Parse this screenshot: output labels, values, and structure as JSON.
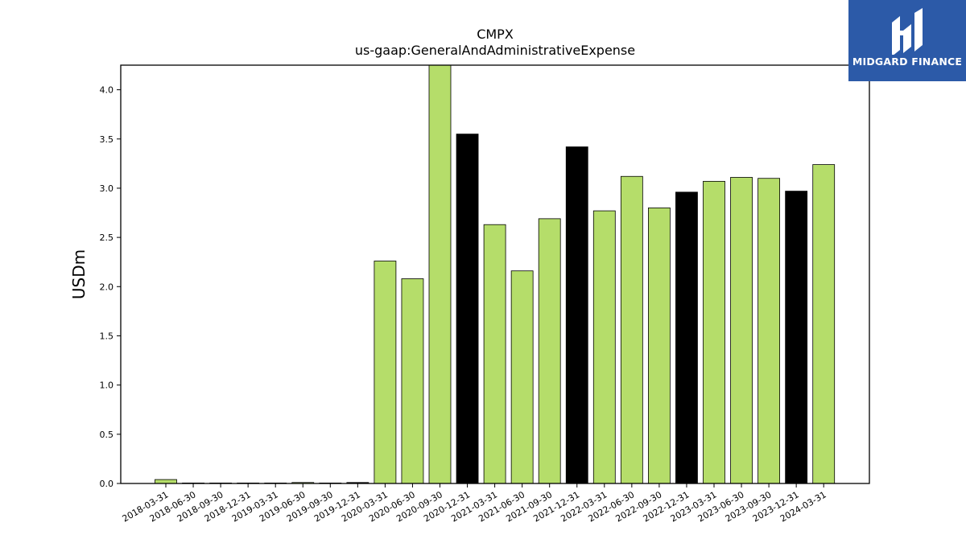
{
  "chart_data": {
    "type": "bar",
    "title": "CMPX",
    "subtitle": "us-gaap:GeneralAndAdministrativeExpense",
    "ylabel": "USDm",
    "xlabel": "",
    "ylim": [
      0,
      4.25
    ],
    "yticks": [
      "0.0",
      "0.5",
      "1.0",
      "1.5",
      "2.0",
      "2.5",
      "3.0",
      "3.5",
      "4.0"
    ],
    "categories": [
      "2018-03-31",
      "2018-06-30",
      "2018-09-30",
      "2018-12-31",
      "2019-03-31",
      "2019-06-30",
      "2019-09-30",
      "2019-12-31",
      "2020-03-31",
      "2020-06-30",
      "2020-09-30",
      "2020-12-31",
      "2021-03-31",
      "2021-06-30",
      "2021-09-30",
      "2021-12-31",
      "2022-03-31",
      "2022-06-30",
      "2022-09-30",
      "2022-12-31",
      "2023-03-31",
      "2023-06-30",
      "2023-09-30",
      "2023-12-31",
      "2024-03-31"
    ],
    "values": [
      0.04,
      0.005,
      0.005,
      0.005,
      0.005,
      0.01,
      0.005,
      0.01,
      2.26,
      2.08,
      4.3,
      3.55,
      2.63,
      2.16,
      2.69,
      3.42,
      2.77,
      3.12,
      2.8,
      2.96,
      3.07,
      3.11,
      3.1,
      2.97,
      3.24
    ],
    "bar_colors": [
      "#b5dd6a",
      "#b5dd6a",
      "#b5dd6a",
      "#000000",
      "#b5dd6a",
      "#b5dd6a",
      "#b5dd6a",
      "#000000",
      "#b5dd6a",
      "#b5dd6a",
      "#b5dd6a",
      "#000000",
      "#b5dd6a",
      "#b5dd6a",
      "#b5dd6a",
      "#000000",
      "#b5dd6a",
      "#b5dd6a",
      "#b5dd6a",
      "#000000",
      "#b5dd6a",
      "#b5dd6a",
      "#b5dd6a",
      "#000000",
      "#b5dd6a"
    ],
    "grid": false,
    "legend": "none"
  },
  "logo": {
    "text": "MIDGARD FINANCE",
    "background": "#2c5aa8"
  }
}
